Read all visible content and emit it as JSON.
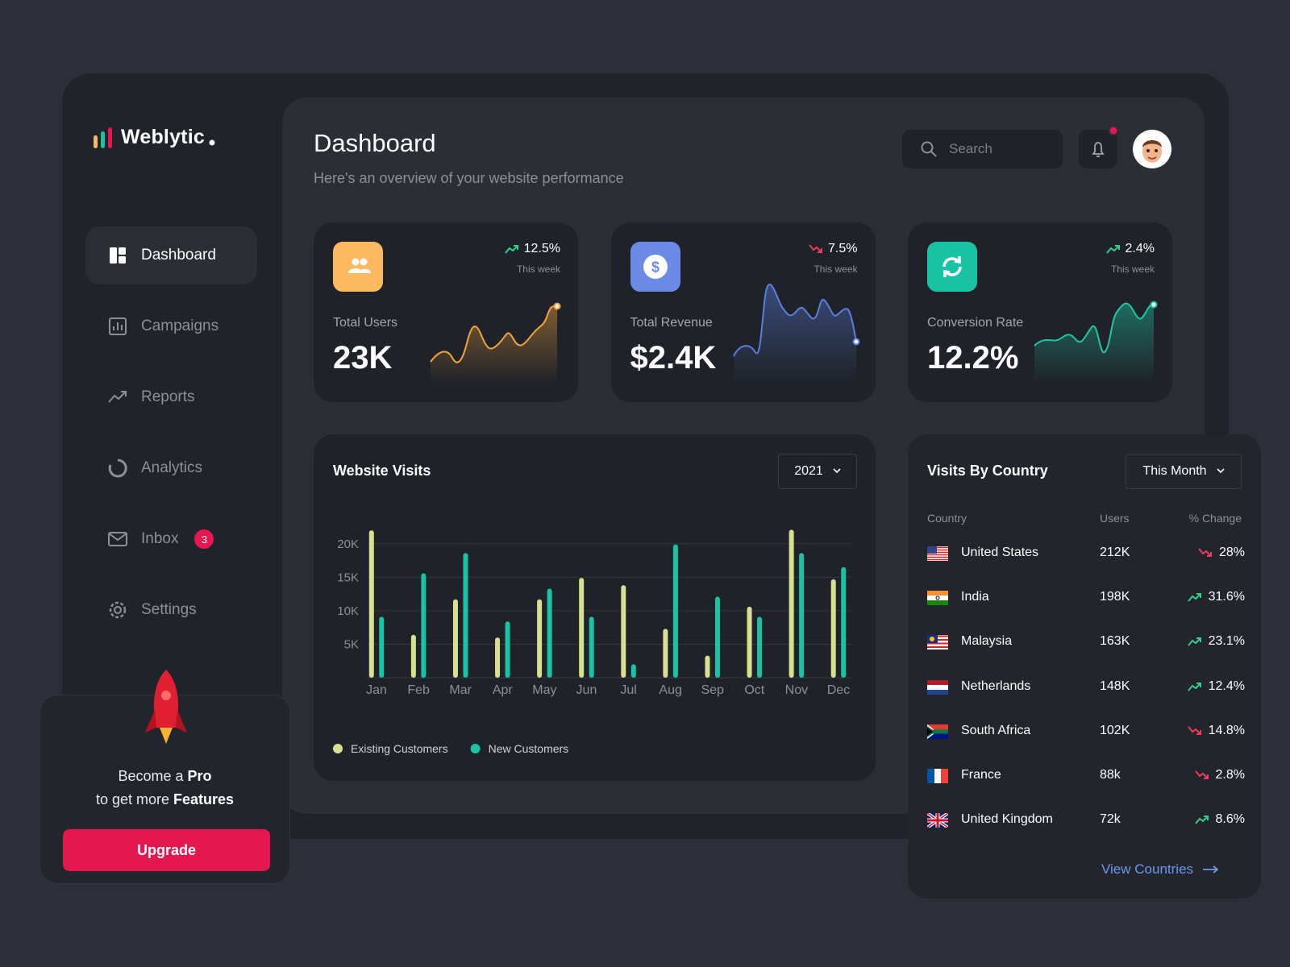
{
  "brand": "Weblytic",
  "nav": [
    {
      "label": "Dashboard",
      "active": true
    },
    {
      "label": "Campaigns"
    },
    {
      "label": "Reports"
    },
    {
      "label": "Analytics"
    },
    {
      "label": "Inbox",
      "badge": 3
    },
    {
      "label": "Settings"
    }
  ],
  "promo": {
    "line1": [
      "Become a",
      "Pro"
    ],
    "line2": [
      "to get more",
      "Features"
    ],
    "button": "Upgrade"
  },
  "header": {
    "title": "Dashboard",
    "subtitle": "Here's an overview of your website performance",
    "search": "Search"
  },
  "stats": [
    {
      "label": "Total Users",
      "value": "23K",
      "change": "12.5%",
      "period": "This week",
      "trend": "up",
      "color": "#fdb95e",
      "line": "#f3a43e"
    },
    {
      "label": "Total Revenue",
      "value": "$2.4K",
      "change": "7.5%",
      "period": "This week",
      "trend": "down",
      "color": "#6a8ae6",
      "line": "#5b7fe0"
    },
    {
      "label": "Conversion Rate",
      "value": "12.2%",
      "change": "2.4%",
      "period": "This week",
      "trend": "up",
      "color": "#17c3a2",
      "line": "#1ec8a5"
    }
  ],
  "visits": {
    "title": "Website Visits",
    "year": "2021",
    "chart_data": {
      "type": "bar",
      "categories": [
        "Jan",
        "Feb",
        "Mar",
        "Apr",
        "May",
        "Jun",
        "Jul",
        "Aug",
        "Sep",
        "Oct",
        "Nov",
        "Dec"
      ],
      "series": [
        {
          "name": "Existing Customers",
          "color": "#d6e08f",
          "values": [
            22000,
            6400,
            11700,
            6000,
            11700,
            14900,
            13800,
            7300,
            3300,
            10600,
            22100,
            14700
          ]
        },
        {
          "name": "New Customers",
          "color": "#19c3a6",
          "values": [
            9100,
            15600,
            18600,
            8400,
            13300,
            9100,
            2000,
            19900,
            12100,
            9100,
            18600,
            16500
          ]
        }
      ],
      "ylim": [
        0,
        22500
      ],
      "yticks": [
        {
          "value": 5000,
          "label": "5K"
        },
        {
          "value": 10000,
          "label": "10K"
        },
        {
          "value": 15000,
          "label": "15K"
        },
        {
          "value": 20000,
          "label": "20K"
        }
      ],
      "grid": true
    }
  },
  "countries": {
    "title": "Visits By Country",
    "filter": "This Month",
    "columns": [
      "Country",
      "Users",
      "% Change"
    ],
    "rows": [
      {
        "country": "United States",
        "users": "212K",
        "change": "28%",
        "trend": "down"
      },
      {
        "country": "India",
        "users": "198K",
        "change": "31.6%",
        "trend": "up"
      },
      {
        "country": "Malaysia",
        "users": "163K",
        "change": "23.1%",
        "trend": "up"
      },
      {
        "country": "Netherlands",
        "users": "148K",
        "change": "12.4%",
        "trend": "up"
      },
      {
        "country": "South Africa",
        "users": "102K",
        "change": "14.8%",
        "trend": "down"
      },
      {
        "country": "France",
        "users": "88k",
        "change": "2.8%",
        "trend": "down"
      },
      {
        "country": "United Kingdom",
        "users": "72k",
        "change": "8.6%",
        "trend": "up"
      }
    ],
    "link": "View Countries"
  }
}
